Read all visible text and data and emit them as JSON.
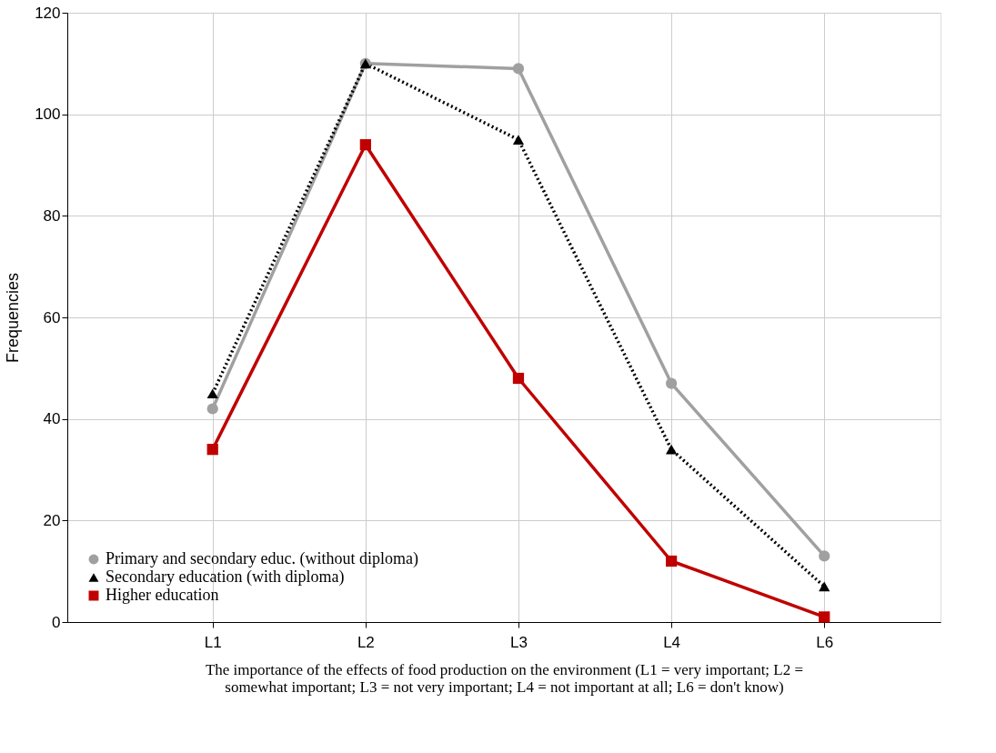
{
  "chart_data": {
    "type": "line",
    "xlabel": "The importance of the effects of food production on the environment (L1 = very important; L2 = somewhat important; L3 = not very important; L4 = not important at all; L6 = don't know)",
    "ylabel": "Frequencies",
    "categories": [
      "L1",
      "L2",
      "L3",
      "L4",
      "L6"
    ],
    "series": [
      {
        "name": "Primary and secondary educ. (without diploma)",
        "color": "#a0a0a0",
        "marker": "circle",
        "line_style": "solid",
        "values": [
          42,
          110,
          109,
          47,
          13
        ]
      },
      {
        "name": "Secondary education (with diploma)",
        "color": "#000000",
        "marker": "triangle",
        "line_style": "dotted",
        "values": [
          45,
          110,
          95,
          34,
          7
        ]
      },
      {
        "name": "Higher education",
        "color": "#c00000",
        "marker": "square",
        "line_style": "solid",
        "values": [
          34,
          94,
          48,
          12,
          1
        ]
      }
    ],
    "ylim": [
      0,
      120
    ],
    "yticks": [
      0,
      20,
      40,
      60,
      80,
      100,
      120
    ],
    "grid": true,
    "legend": "bottom left"
  }
}
